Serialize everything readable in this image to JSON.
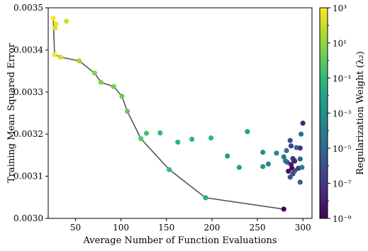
{
  "chart_data": {
    "type": "scatter",
    "title": "",
    "xlabel": "Average Number of Function Evaluations",
    "ylabel": "Training Mean Squared Error",
    "xlim": [
      20,
      310
    ],
    "ylim": [
      0.003,
      0.0035
    ],
    "x_ticks": [
      50,
      100,
      150,
      200,
      250,
      300
    ],
    "x_tick_labels": [
      "50",
      "100",
      "150",
      "200",
      "250",
      "300"
    ],
    "y_ticks": [
      0.003,
      0.0031,
      0.0032,
      0.0033,
      0.0034,
      0.0035
    ],
    "y_tick_labels": [
      "0.0030",
      "0.0031",
      "0.0032",
      "0.0033",
      "0.0034",
      "0.0035"
    ],
    "grid": false,
    "colorbar": {
      "label": "Regularization Weight (λ₂)",
      "scale": "log",
      "range_log10": [
        -9,
        3
      ],
      "ticks_log10": [
        3,
        1,
        -1,
        -3,
        -5,
        -7,
        -9
      ],
      "tick_labels": [
        "10³",
        "10¹",
        "10⁻¹",
        "10⁻³",
        "10⁻⁵",
        "10⁻⁷",
        "10⁻⁹"
      ],
      "colormap": "viridis",
      "colormap_stops": [
        "#440154",
        "#482878",
        "#3e4989",
        "#31688e",
        "#26828e",
        "#1f9e89",
        "#35b779",
        "#6ece58",
        "#b5de2b",
        "#fde725"
      ]
    },
    "series": [
      {
        "kind": "points",
        "points": [
          {
            "x": 25.5,
            "y": 0.003475,
            "lambda_log10": 3.0
          },
          {
            "x": 28.5,
            "y": 0.003462,
            "lambda_log10": 2.6
          },
          {
            "x": 27.5,
            "y": 0.003452,
            "lambda_log10": 2.4
          },
          {
            "x": 40.0,
            "y": 0.003468,
            "lambda_log10": 1.9
          },
          {
            "x": 27.0,
            "y": 0.003389,
            "lambda_log10": 2.8
          },
          {
            "x": 33.5,
            "y": 0.003383,
            "lambda_log10": 2.1
          },
          {
            "x": 54.0,
            "y": 0.003374,
            "lambda_log10": 1.3
          },
          {
            "x": 71.0,
            "y": 0.003345,
            "lambda_log10": 0.8
          },
          {
            "x": 78.0,
            "y": 0.003323,
            "lambda_log10": 0.6
          },
          {
            "x": 92.0,
            "y": 0.003313,
            "lambda_log10": 0.4
          },
          {
            "x": 101.0,
            "y": 0.00329,
            "lambda_log10": 0.2
          },
          {
            "x": 107.0,
            "y": 0.003254,
            "lambda_log10": 0.0
          },
          {
            "x": 122.0,
            "y": 0.003189,
            "lambda_log10": -0.2
          },
          {
            "x": 128.0,
            "y": 0.003202,
            "lambda_log10": -0.5
          },
          {
            "x": 143.0,
            "y": 0.003203,
            "lambda_log10": -0.9
          },
          {
            "x": 162.5,
            "y": 0.003181,
            "lambda_log10": -1.2
          },
          {
            "x": 178.0,
            "y": 0.003188,
            "lambda_log10": -1.3
          },
          {
            "x": 199.0,
            "y": 0.003191,
            "lambda_log10": -1.1
          },
          {
            "x": 153.0,
            "y": 0.003116,
            "lambda_log10": -0.8
          },
          {
            "x": 193.0,
            "y": 0.003049,
            "lambda_log10": -1.4
          },
          {
            "x": 239.0,
            "y": 0.003206,
            "lambda_log10": -2.1
          },
          {
            "x": 217.0,
            "y": 0.003148,
            "lambda_log10": -2.3
          },
          {
            "x": 230.0,
            "y": 0.003121,
            "lambda_log10": -2.0
          },
          {
            "x": 256.0,
            "y": 0.003157,
            "lambda_log10": -3.2
          },
          {
            "x": 256.0,
            "y": 0.003123,
            "lambda_log10": -2.6
          },
          {
            "x": 262.0,
            "y": 0.003129,
            "lambda_log10": -3.6
          },
          {
            "x": 271.0,
            "y": 0.003155,
            "lambda_log10": -3.4
          },
          {
            "x": 279.0,
            "y": 0.003146,
            "lambda_log10": -4.0
          },
          {
            "x": 281.0,
            "y": 0.003136,
            "lambda_log10": -4.6
          },
          {
            "x": 282.0,
            "y": 0.003161,
            "lambda_log10": -4.3
          },
          {
            "x": 286.0,
            "y": 0.003185,
            "lambda_log10": -6.2
          },
          {
            "x": 287.0,
            "y": 0.003172,
            "lambda_log10": -6.6
          },
          {
            "x": 289.0,
            "y": 0.003142,
            "lambda_log10": -7.0
          },
          {
            "x": 290.0,
            "y": 0.003138,
            "lambda_log10": -7.3
          },
          {
            "x": 283.0,
            "y": 0.003133,
            "lambda_log10": -5.0
          },
          {
            "x": 287.0,
            "y": 0.003128,
            "lambda_log10": -8.0
          },
          {
            "x": 291.0,
            "y": 0.003136,
            "lambda_log10": -7.7
          },
          {
            "x": 293.0,
            "y": 0.003168,
            "lambda_log10": -4.8
          },
          {
            "x": 288.0,
            "y": 0.003119,
            "lambda_log10": -8.8
          },
          {
            "x": 284.0,
            "y": 0.003112,
            "lambda_log10": -8.4
          },
          {
            "x": 289.0,
            "y": 0.003106,
            "lambda_log10": -6.4
          },
          {
            "x": 286.0,
            "y": 0.003098,
            "lambda_log10": -5.6
          },
          {
            "x": 291.0,
            "y": 0.003113,
            "lambda_log10": -5.9
          },
          {
            "x": 295.0,
            "y": 0.003119,
            "lambda_log10": -6.8
          },
          {
            "x": 297.0,
            "y": 0.003141,
            "lambda_log10": -5.2
          },
          {
            "x": 297.0,
            "y": 0.003167,
            "lambda_log10": -7.5
          },
          {
            "x": 298.0,
            "y": 0.0032,
            "lambda_log10": -4.5
          },
          {
            "x": 300.0,
            "y": 0.003226,
            "lambda_log10": -7.8
          },
          {
            "x": 299.0,
            "y": 0.003121,
            "lambda_log10": -3.8
          },
          {
            "x": 297.0,
            "y": 0.003086,
            "lambda_log10": -5.4
          },
          {
            "x": 279.0,
            "y": 0.003022,
            "lambda_log10": -8.9
          }
        ]
      },
      {
        "kind": "pareto-line",
        "color": "#555555",
        "points": [
          {
            "x": 25.5,
            "y": 0.003475
          },
          {
            "x": 27.0,
            "y": 0.003389
          },
          {
            "x": 33.5,
            "y": 0.003383
          },
          {
            "x": 54.0,
            "y": 0.003374
          },
          {
            "x": 71.0,
            "y": 0.003345
          },
          {
            "x": 78.0,
            "y": 0.003323
          },
          {
            "x": 92.0,
            "y": 0.003313
          },
          {
            "x": 101.0,
            "y": 0.00329
          },
          {
            "x": 107.0,
            "y": 0.003254
          },
          {
            "x": 122.0,
            "y": 0.003189
          },
          {
            "x": 153.0,
            "y": 0.003116
          },
          {
            "x": 193.0,
            "y": 0.003049
          },
          {
            "x": 279.0,
            "y": 0.003022
          }
        ]
      }
    ]
  }
}
